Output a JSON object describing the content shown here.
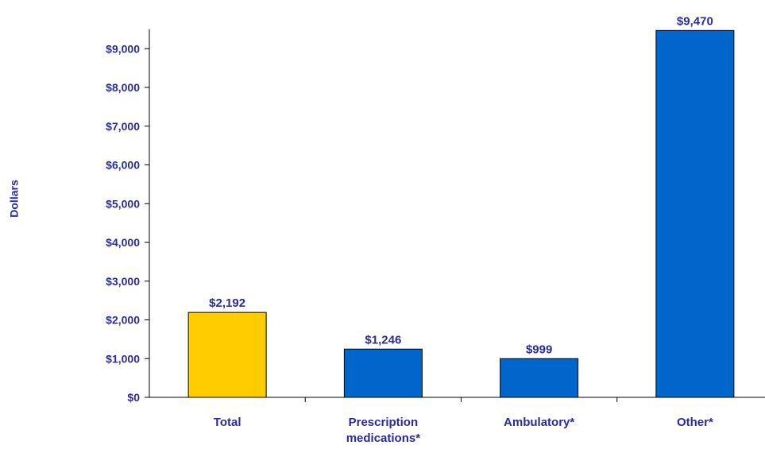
{
  "chart_data": {
    "type": "bar",
    "ylabel": "Dollars",
    "categories": [
      "Total",
      "Prescription medications*",
      "Ambulatory*",
      "Other*"
    ],
    "category_lines": [
      [
        "Total"
      ],
      [
        "Prescription",
        "medications*"
      ],
      [
        "Ambulatory*"
      ],
      [
        "Other*"
      ]
    ],
    "values": [
      2192,
      1246,
      999,
      9470
    ],
    "value_labels": [
      "$2,192",
      "$1,246",
      "$999",
      "$9,470"
    ],
    "bar_colors": [
      "#FFCC00",
      "#0066CC",
      "#0066CC",
      "#0066CC"
    ],
    "ylim": [
      0,
      9500
    ],
    "yticks": [
      0,
      1000,
      2000,
      3000,
      4000,
      5000,
      6000,
      7000,
      8000,
      9000
    ],
    "ytick_labels": [
      "$0",
      "$1,000",
      "$2,000",
      "$3,000",
      "$4,000",
      "$5,000",
      "$6,000",
      "$7,000",
      "$8,000",
      "$9,000"
    ],
    "grid": false,
    "legend": "none",
    "text_color": "#2A2AA0"
  }
}
